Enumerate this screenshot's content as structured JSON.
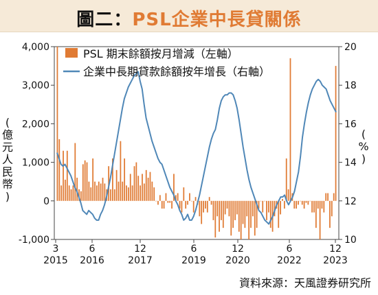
{
  "header": {
    "title_prefix": "圖二：",
    "title_accent": "PSL",
    "title_suffix": "企業中長貸關係"
  },
  "source": "資料來源：天風證券研究所",
  "chart_data": {
    "type": "bar+line",
    "left_axis": {
      "label": "(億元人民幣)",
      "ticks": [
        "4,000",
        "3,000",
        "2,000",
        "1,000",
        "0",
        "-1,000"
      ],
      "range": [
        -1000,
        4000
      ]
    },
    "right_axis": {
      "label": "(%)",
      "ticks": [
        "20",
        "18",
        "16",
        "14",
        "12",
        "10"
      ],
      "range": [
        10,
        20
      ]
    },
    "x_ticks": [
      {
        "month": "3",
        "year": "2015"
      },
      {
        "month": "6",
        "year": "2016"
      },
      {
        "month": "12",
        "year": "2017"
      },
      {
        "month": "6",
        "year": "2019"
      },
      {
        "month": "12",
        "year": "2020"
      },
      {
        "month": "6",
        "year": "2022"
      },
      {
        "month": "12",
        "year": "2023"
      }
    ],
    "legend": [
      {
        "label": "PSL 期末餘額按月增減（左軸）",
        "color": "#e07b34"
      },
      {
        "label": "企業中長期貸款餘額按年增長（右軸）",
        "color": "#4f87b7"
      }
    ],
    "bars": [
      4000,
      1600,
      400,
      1300,
      550,
      1300,
      400,
      300,
      400,
      1500,
      600,
      300,
      250,
      950,
      1050,
      1000,
      500,
      350,
      1100,
      500,
      400,
      500,
      450,
      600,
      450,
      300,
      900,
      300,
      1100,
      300,
      800,
      500,
      1550,
      500,
      1100,
      400,
      350,
      700,
      400,
      900,
      1000,
      650,
      400,
      700,
      450,
      800,
      600,
      750,
      500,
      350,
      0,
      -100,
      150,
      -200,
      -200,
      200,
      -50,
      -50,
      -200,
      700,
      150,
      200,
      -200,
      -300,
      350,
      -200,
      -100,
      200,
      0,
      -300,
      100,
      -100,
      -400,
      -600,
      -300,
      -200,
      -300,
      100,
      -100,
      -500,
      -950,
      -400,
      -800,
      -500,
      -700,
      -350,
      -200,
      -400,
      -900,
      -700,
      -500,
      -350,
      -800,
      -1000,
      -600,
      -700,
      -400,
      -1000,
      -700,
      -400,
      -900,
      -700,
      -200,
      0,
      -300,
      0,
      -500,
      -300,
      -700,
      -800,
      -400,
      -200,
      -700,
      -350,
      50,
      -200,
      1100,
      300,
      3700,
      200,
      -200,
      -200,
      -100,
      0,
      -100,
      -200,
      -50,
      -100,
      0,
      -300,
      -300,
      -700,
      -200,
      -1000,
      -200,
      -300,
      200,
      200,
      -700,
      -400,
      200,
      3500
    ],
    "line": [
      14.5,
      14.2,
      13.9,
      13.8,
      13.9,
      13.7,
      13.5,
      13.3,
      13.0,
      12.7,
      12.5,
      12.2,
      11.9,
      11.5,
      11.4,
      11.3,
      11.5,
      11.4,
      11.3,
      11.1,
      11.0,
      11.0,
      11.3,
      11.5,
      11.8,
      12.2,
      12.7,
      13.2,
      13.8,
      14.4,
      15.0,
      15.6,
      16.2,
      16.8,
      17.3,
      17.6,
      17.9,
      18.1,
      18.3,
      18.5,
      18.6,
      18.7,
      18.2,
      17.8,
      17.0,
      16.3,
      15.9,
      15.5,
      15.1,
      14.8,
      14.5,
      14.2,
      14.0,
      13.9,
      13.6,
      13.3,
      13.0,
      12.7,
      12.5,
      12.3,
      12.0,
      11.8,
      11.5,
      11.3,
      11.0,
      11.1,
      11.3,
      11.0,
      11.0,
      11.2,
      11.5,
      11.9,
      12.3,
      12.8,
      13.3,
      13.8,
      14.3,
      14.8,
      15.2,
      15.5,
      15.7,
      16.2,
      16.8,
      17.2,
      17.4,
      17.5,
      17.5,
      17.6,
      17.6,
      17.5,
      17.2,
      16.8,
      16.2,
      15.5,
      14.8,
      14.2,
      13.6,
      13.1,
      12.7,
      12.4,
      12.1,
      11.8,
      11.5,
      11.4,
      11.2,
      11.0,
      10.9,
      10.8,
      11.0,
      11.2,
      11.5,
      11.8,
      12.0,
      12.2,
      12.2,
      12.3,
      12.0,
      11.8,
      12.0,
      12.2,
      12.5,
      13.0,
      13.5,
      14.3,
      15.3,
      16.0,
      16.6,
      17.1,
      17.5,
      17.8,
      18.0,
      18.2,
      18.3,
      18.2,
      18.0,
      17.9,
      17.8,
      17.5,
      17.2,
      17.0,
      16.8,
      16.6
    ]
  }
}
